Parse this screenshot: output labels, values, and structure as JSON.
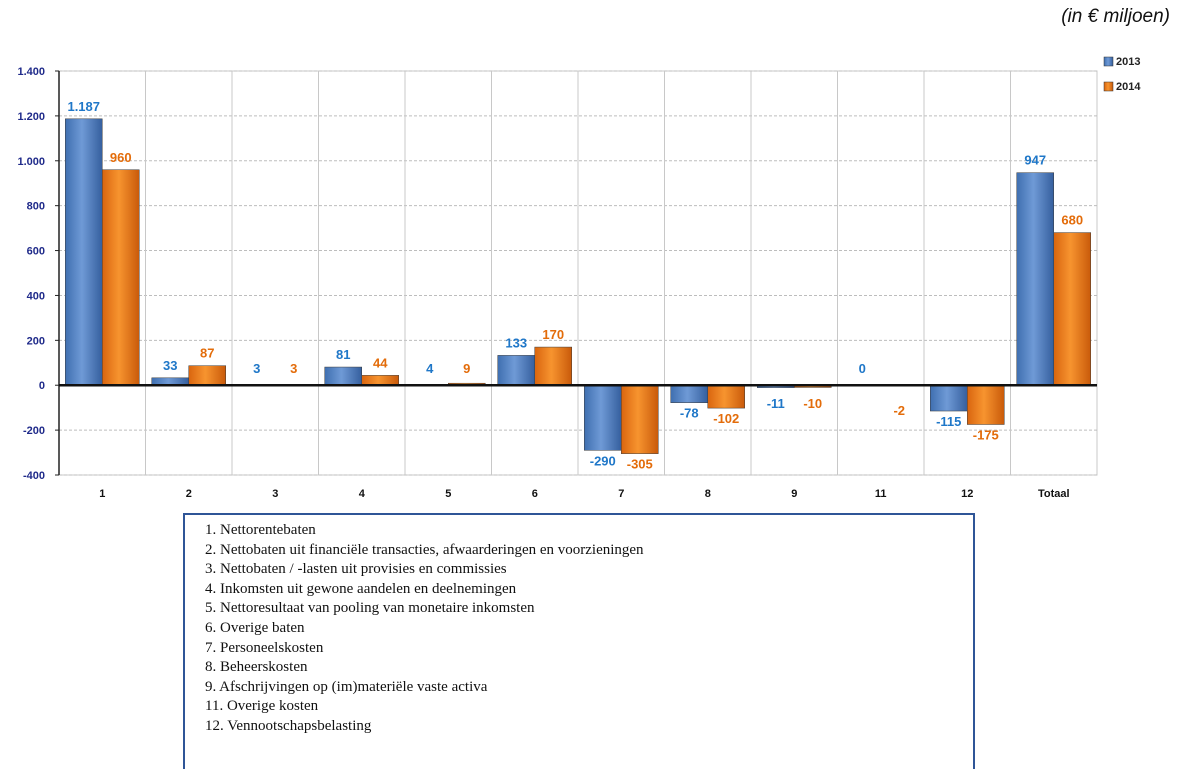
{
  "unit_note": "(in € miljoen)",
  "colors": {
    "s2013": "#4a7fc4",
    "s2014": "#f07c1c",
    "label2013": "#1f77c8",
    "label2014": "#e36c0a",
    "axis": "#1f2a8a"
  },
  "chart_data": {
    "type": "bar",
    "categories": [
      "1",
      "2",
      "3",
      "4",
      "5",
      "6",
      "7",
      "8",
      "9",
      "11",
      "12",
      "Totaal"
    ],
    "series": [
      {
        "name": "2013",
        "values": [
          1187,
          33,
          3,
          81,
          4,
          133,
          -290,
          -78,
          -11,
          0,
          -115,
          947
        ],
        "labels": [
          "1.187",
          "33",
          "3",
          "81",
          "4",
          "133",
          "-290",
          "-78",
          "-11",
          "0",
          "-115",
          "947"
        ]
      },
      {
        "name": "2014",
        "values": [
          960,
          87,
          3,
          44,
          9,
          170,
          -305,
          -102,
          -10,
          -2,
          -175,
          680
        ],
        "labels": [
          "960",
          "87",
          "3",
          "44",
          "9",
          "170",
          "-305",
          "-102",
          "-10",
          "-2",
          "-175",
          "680"
        ]
      }
    ],
    "ylim": [
      -400,
      1400
    ],
    "yticks": [
      -400,
      -200,
      0,
      200,
      400,
      600,
      800,
      1000,
      1200,
      1400
    ],
    "ytick_labels": [
      "-400",
      "-200",
      "0",
      "200",
      "400",
      "600",
      "800",
      "1.000",
      "1.200",
      "1.400"
    ],
    "grid": true,
    "legend_position": "top-right"
  },
  "legend_items": [
    "1. Nettorentebaten",
    "2. Nettobaten uit financiële transacties, afwaarderingen en voorzieningen",
    "3. Nettobaten / -lasten uit provisies en commissies",
    "4. Inkomsten uit gewone aandelen en deelnemingen",
    "5. Nettoresultaat van pooling  van monetaire inkomsten",
    "6. Overige baten",
    "7. Personeelskosten",
    "8. Beheerskosten",
    "9. Afschrijvingen op (im)materiële vaste activa",
    "11. Overige kosten",
    "12. Vennootschapsbelasting"
  ]
}
